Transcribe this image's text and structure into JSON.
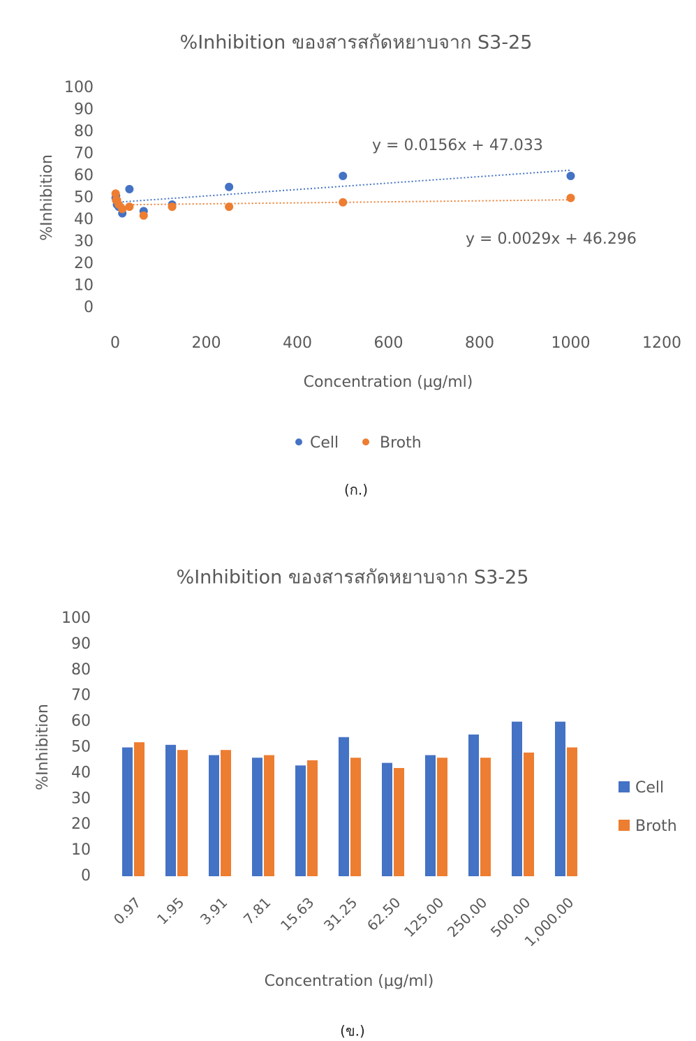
{
  "chart_data": [
    {
      "type": "scatter",
      "title": "%Inhibition ของสารสกัดหยาบจาก S3-25",
      "x_label": "Concentration (µg/ml)",
      "y_label": "%Inhibition",
      "x": [
        0.97,
        1.95,
        3.91,
        7.81,
        15.63,
        31.25,
        62.5,
        125,
        250,
        500,
        1000
      ],
      "series": [
        {
          "name": "Cell",
          "color": "#4472c4",
          "values": [
            50,
            51,
            47,
            46,
            43,
            54,
            44,
            47,
            55,
            60,
            60
          ]
        },
        {
          "name": "Broth",
          "color": "#ed7d31",
          "values": [
            52,
            49,
            49,
            47,
            45,
            46,
            42,
            46,
            46,
            48,
            50
          ]
        }
      ],
      "annotations": [
        "y = 0.0156x + 47.033",
        "y = 0.0029x + 46.296"
      ],
      "trendline": "linear",
      "grid": false,
      "legend": "bottom",
      "xlim": [
        0,
        1200
      ],
      "xticks": [
        0,
        200,
        400,
        600,
        800,
        1000,
        1200
      ],
      "ylim": [
        0,
        100
      ],
      "yticks": [
        0,
        10,
        20,
        30,
        40,
        50,
        60,
        70,
        80,
        90,
        100
      ]
    },
    {
      "type": "bar",
      "title": "%Inhibition ของสารสกัดหยาบจาก S3-25",
      "x_label": "Concentration (µg/ml)",
      "y_label": "%Inhibition",
      "categories": [
        "0.97",
        "1.95",
        "3.91",
        "7.81",
        "15.63",
        "31.25",
        "62.50",
        "125.00",
        "250.00",
        "500.00",
        "1,000.00"
      ],
      "series": [
        {
          "name": "Cell",
          "color": "#4472c4",
          "values": [
            50,
            51,
            47,
            46,
            43,
            54,
            44,
            47,
            55,
            60,
            60
          ]
        },
        {
          "name": "Broth",
          "color": "#ed7d31",
          "values": [
            52,
            49,
            49,
            47,
            45,
            46,
            42,
            46,
            46,
            48,
            50
          ]
        }
      ],
      "grid": false,
      "legend": "right",
      "ylim": [
        0,
        100
      ],
      "yticks": [
        0,
        10,
        20,
        30,
        40,
        50,
        60,
        70,
        80,
        90,
        100
      ]
    }
  ],
  "captions": [
    "(ก.)",
    "(ข.)"
  ]
}
